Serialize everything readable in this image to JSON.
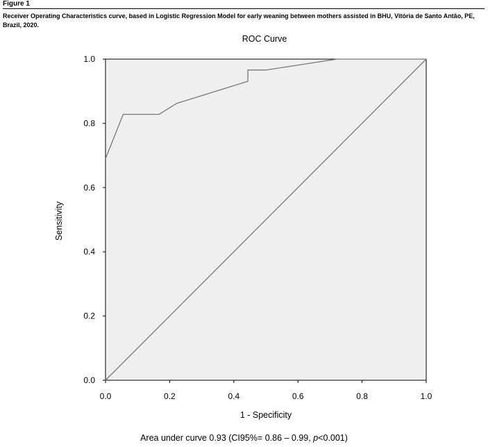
{
  "figure": {
    "label": "Figure 1",
    "caption": "Receiver Operating Characteristics curve, based in Logistic Regression Model for early weaning between mothers assisted in BHU, Vitória de Santo Antão, PE, Brazil, 2020."
  },
  "footnote": {
    "prefix": "Area under curve 0.93 (CI95%= 0.86 – 0.99, ",
    "p_symbol": "p",
    "suffix": "<0.001)"
  },
  "chart_data": {
    "type": "line",
    "title": "ROC Curve",
    "xlabel": "1 - Specificity",
    "ylabel": "Sensitivity",
    "xlim": [
      0,
      1
    ],
    "ylim": [
      0,
      1
    ],
    "xticks": [
      "0.0",
      "0.2",
      "0.4",
      "0.6",
      "0.8",
      "1.0"
    ],
    "yticks": [
      "0.0",
      "0.2",
      "0.4",
      "0.6",
      "0.8",
      "1.0"
    ],
    "xtick_values": [
      0,
      0.2,
      0.4,
      0.6,
      0.8,
      1.0
    ],
    "ytick_values": [
      0,
      0.2,
      0.4,
      0.6,
      0.8,
      1.0
    ],
    "grid": false,
    "background_color": "#efefef",
    "line_color": "#777777",
    "series": [
      {
        "role": "roc",
        "x": [
          0.0,
          0.0,
          0.055,
          0.167,
          0.222,
          0.444,
          0.444,
          0.5,
          0.722,
          1.0
        ],
        "y": [
          0.69,
          0.69,
          0.828,
          0.828,
          0.862,
          0.931,
          0.966,
          0.966,
          1.0,
          1.0
        ]
      },
      {
        "role": "reference",
        "x": [
          0,
          1
        ],
        "y": [
          0,
          1
        ]
      }
    ]
  }
}
